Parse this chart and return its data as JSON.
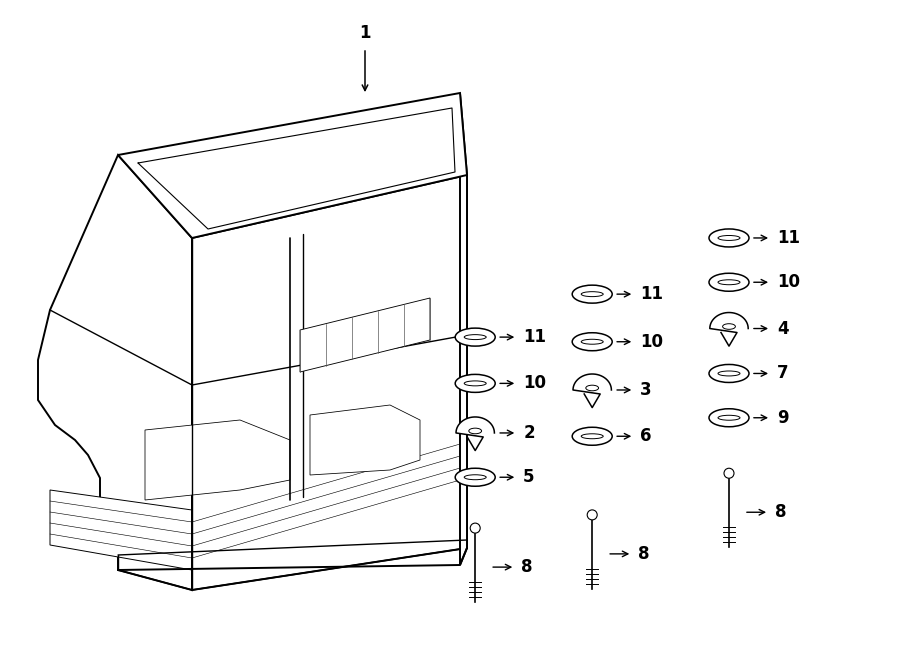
{
  "fig_width": 9.0,
  "fig_height": 6.61,
  "dpi": 100,
  "background_color": "#ffffff",
  "parts_layout": [
    {
      "col": 1,
      "row": 1,
      "label": "11",
      "shape": "washer_flat",
      "ix": 0.528,
      "iy": 0.49
    },
    {
      "col": 1,
      "row": 2,
      "label": "10",
      "shape": "washer_flat",
      "ix": 0.528,
      "iy": 0.42
    },
    {
      "col": 1,
      "row": 3,
      "label": "2",
      "shape": "cone_nut",
      "ix": 0.528,
      "iy": 0.345
    },
    {
      "col": 1,
      "row": 4,
      "label": "5",
      "shape": "washer_flat",
      "ix": 0.528,
      "iy": 0.278
    },
    {
      "col": 1,
      "row": 5,
      "label": "8",
      "shape": "bolt",
      "ix": 0.528,
      "iy": 0.195
    },
    {
      "col": 2,
      "row": 0,
      "label": "11",
      "shape": "washer_flat",
      "ix": 0.658,
      "iy": 0.555
    },
    {
      "col": 2,
      "row": 1,
      "label": "10",
      "shape": "washer_flat",
      "ix": 0.658,
      "iy": 0.483
    },
    {
      "col": 2,
      "row": 2,
      "label": "3",
      "shape": "cone_nut",
      "ix": 0.658,
      "iy": 0.41
    },
    {
      "col": 2,
      "row": 3,
      "label": "6",
      "shape": "washer_flat",
      "ix": 0.658,
      "iy": 0.34
    },
    {
      "col": 2,
      "row": 4,
      "label": "8",
      "shape": "bolt",
      "ix": 0.658,
      "iy": 0.215
    },
    {
      "col": 3,
      "row": 0,
      "label": "11",
      "shape": "washer_flat",
      "ix": 0.81,
      "iy": 0.64
    },
    {
      "col": 3,
      "row": 1,
      "label": "10",
      "shape": "washer_flat",
      "ix": 0.81,
      "iy": 0.573
    },
    {
      "col": 3,
      "row": 2,
      "label": "4",
      "shape": "cone_nut",
      "ix": 0.81,
      "iy": 0.503
    },
    {
      "col": 3,
      "row": 3,
      "label": "7",
      "shape": "washer_flat",
      "ix": 0.81,
      "iy": 0.435
    },
    {
      "col": 3,
      "row": 4,
      "label": "9",
      "shape": "washer_flat",
      "ix": 0.81,
      "iy": 0.368
    },
    {
      "col": 3,
      "row": 5,
      "label": "8",
      "shape": "bolt",
      "ix": 0.81,
      "iy": 0.278
    }
  ]
}
